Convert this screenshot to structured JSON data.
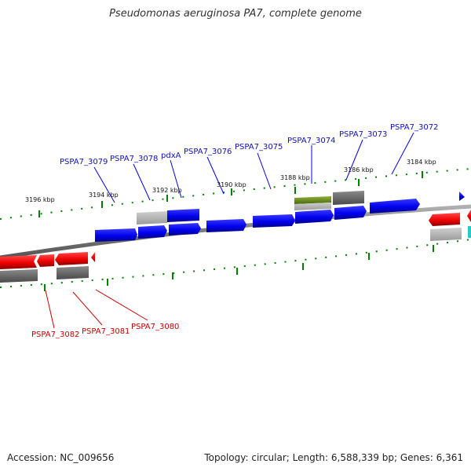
{
  "title": "Pseudomonas aeruginosa PA7, complete genome",
  "footer": {
    "accession": "Accession: NC_009656",
    "summary": "Topology: circular; Length: 6,588,339 bp; Genes: 6,361"
  },
  "colors": {
    "forward_gene": "#0000ee",
    "reverse_gene": "#ee0000",
    "forward_label": "#1010c0",
    "reverse_label": "#cc0000",
    "pseudo_gene": "#6b8c23",
    "backbone": "#888888",
    "tick": "#008000",
    "feature_grey": "#666666",
    "feature_cyan": "#22cccc"
  },
  "scale_labels": [
    "3196 kbp",
    "3194 kbp",
    "3192 kbp",
    "3190 kbp",
    "3188 kbp",
    "3186 kbp",
    "3184 kbp"
  ],
  "forward_labels": [
    "PSPA7_3079",
    "PSPA7_3078",
    "pdxA",
    "PSPA7_3076",
    "PSPA7_3075",
    "PSPA7_3074",
    "PSPA7_3073",
    "PSPA7_3072"
  ],
  "reverse_labels": [
    "PSPA7_3082",
    "PSPA7_3081",
    "PSPA7_3080"
  ]
}
